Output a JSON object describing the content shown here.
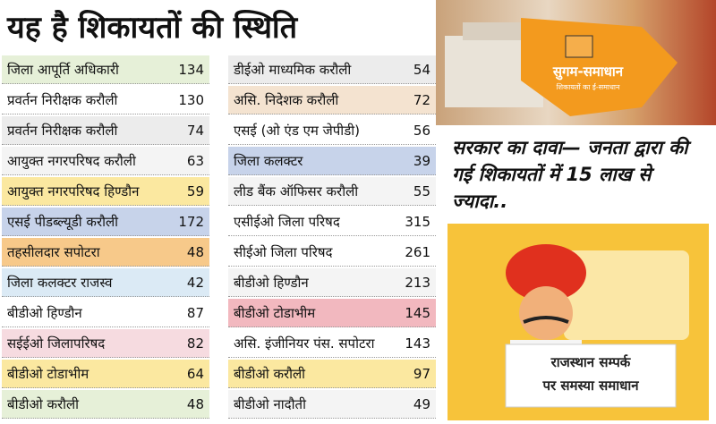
{
  "header": {
    "title": "यह है शिकायतों की स्थिति"
  },
  "table_left": {
    "rows": [
      [
        "जिला आपूर्ति अधिकारी",
        "134"
      ],
      [
        "प्रवर्तन निरीक्षक करौली",
        "130"
      ],
      [
        "प्रवर्तन निरीक्षक करौली",
        "74"
      ],
      [
        "आयुक्त नगरपरिषद करौली",
        "63"
      ],
      [
        "आयुक्त नगरपरिषद हिण्डौन",
        "59"
      ],
      [
        "एसई पीडब्ल्यूडी करौली",
        "172"
      ],
      [
        "तहसीलदार सपोटरा",
        "48"
      ],
      [
        "जिला कलक्टर राजस्व",
        "42"
      ],
      [
        "बीडीओ हिण्डौन",
        "87"
      ],
      [
        "सईईओ जिलापरिषद",
        "82"
      ],
      [
        "बीडीओ टोडाभीम",
        "64"
      ],
      [
        "बीडीओ करौली",
        "48"
      ]
    ]
  },
  "table_right": {
    "rows": [
      [
        "डीईओ माध्यमिक करौली",
        "54"
      ],
      [
        "असि. निदेशक करौली",
        "72"
      ],
      [
        "एसई (ओ एंड एम जेपीडी)",
        "56"
      ],
      [
        "जिला कलक्टर",
        "39"
      ],
      [
        "लीड बैंक ऑफिसर करौली",
        "55"
      ],
      [
        "एसीईओ जिला परिषद",
        "315"
      ],
      [
        "सीईओ जिला परिषद",
        "261"
      ],
      [
        "बीडीओ हिण्डौन",
        "213"
      ],
      [
        "बीडीओ टोडाभीम",
        "145"
      ],
      [
        "असि. इंजीनियर पंस. सपोटरा",
        "143"
      ],
      [
        "बीडीओ करौली",
        "97"
      ],
      [
        "बीडीओ नादौती",
        "49"
      ]
    ]
  },
  "photo": {
    "logo": "सुगम-समाधान",
    "logo_sub": "शिकायतों का ई-समाधान"
  },
  "caption": "सरकार का दावा— जनता द्वारा की गई शिकायतों में 15 लाख से ज्यादा..",
  "illustration": {
    "text_line1": "राजस्थान सम्पर्क",
    "text_line2": "पर समस्या समाधान"
  }
}
